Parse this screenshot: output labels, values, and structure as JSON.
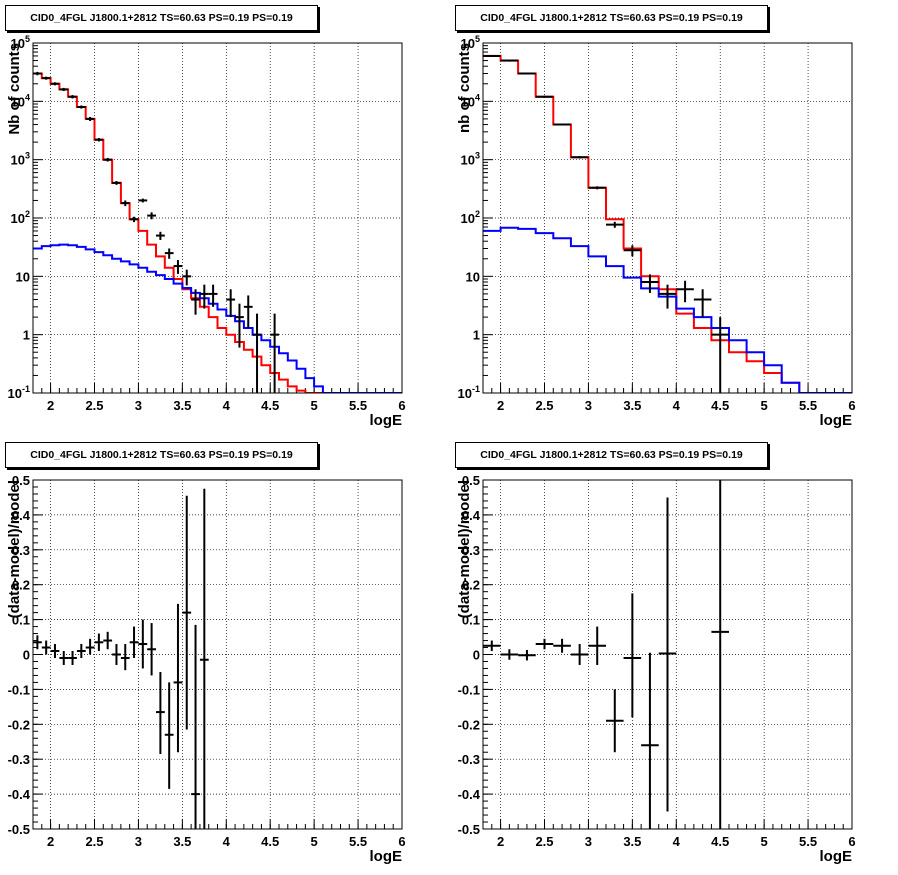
{
  "chart_data": [
    {
      "type": "line",
      "panel": "top-left",
      "title": "CID0_4FGL J1800.1+2812 TS=60.63 PS=0.19 PS=0.19",
      "xlabel": "logE",
      "ylabel": "Nb of counts",
      "xlim": [
        1.8,
        6.0
      ],
      "ylim": [
        0.1,
        100000
      ],
      "yscale": "log",
      "grid": true,
      "x_ticks": [
        "2",
        "2.5",
        "3",
        "3.5",
        "4",
        "4.5",
        "5",
        "5.5",
        "6"
      ],
      "y_ticks": [
        "10⁻¹",
        "1",
        "10",
        "10²",
        "10³",
        "10⁴",
        "10⁵"
      ],
      "bin_edges": [
        1.8,
        1.9,
        2.0,
        2.1,
        2.2,
        2.3,
        2.4,
        2.5,
        2.6,
        2.7,
        2.8,
        2.9,
        3.0,
        3.1,
        3.2,
        3.3,
        3.4,
        3.5,
        3.6,
        3.7,
        3.8,
        3.9,
        4.0,
        4.1,
        4.2,
        4.3,
        4.4,
        4.5,
        4.6,
        4.7,
        4.8,
        4.9,
        5.0,
        5.1,
        5.2,
        5.3,
        5.4,
        5.5,
        5.6,
        5.7,
        5.8,
        5.9,
        6.0
      ],
      "series": [
        {
          "color": "#ff0000",
          "style": "step",
          "values": [
            30000,
            25000,
            20000,
            16000,
            12000,
            8000,
            5000,
            2200,
            1000,
            400,
            180,
            95,
            60,
            35,
            22,
            14,
            9,
            6,
            4.2,
            3.0,
            2.0,
            1.3,
            1.0,
            0.75,
            0.55,
            0.42,
            0.3,
            0.22,
            0.17,
            0.13,
            0.11,
            0.1,
            0.1,
            0.1,
            0.1,
            0.1,
            0.1,
            0.1,
            0.1,
            0.1,
            0.1,
            0.1
          ]
        },
        {
          "color": "#0000ff",
          "style": "step",
          "values": [
            30,
            33,
            34,
            35,
            34,
            32,
            29,
            26,
            23,
            20,
            18,
            16,
            14,
            12,
            10.5,
            9,
            7.5,
            6.3,
            5.2,
            4.2,
            3.4,
            2.7,
            2.1,
            1.7,
            1.3,
            1.0,
            0.8,
            0.62,
            0.48,
            0.36,
            0.26,
            0.18,
            0.13,
            0.1,
            0.1,
            0.1,
            0.1,
            0.1,
            0.1,
            0.1,
            0.1,
            0.1
          ]
        }
      ],
      "points": [
        {
          "x": 1.85,
          "xerr": 0.05,
          "y": 30000,
          "ylo": 28000,
          "yhi": 32000
        },
        {
          "x": 1.95,
          "xerr": 0.05,
          "y": 25000,
          "ylo": 23500,
          "yhi": 26500
        },
        {
          "x": 2.05,
          "xerr": 0.05,
          "y": 20000,
          "ylo": 18800,
          "yhi": 21200
        },
        {
          "x": 2.15,
          "xerr": 0.05,
          "y": 16000,
          "ylo": 15000,
          "yhi": 17000
        },
        {
          "x": 2.25,
          "xerr": 0.05,
          "y": 12000,
          "ylo": 11200,
          "yhi": 12800
        },
        {
          "x": 2.35,
          "xerr": 0.05,
          "y": 8000,
          "ylo": 7500,
          "yhi": 8500
        },
        {
          "x": 2.45,
          "xerr": 0.05,
          "y": 5000,
          "ylo": 4600,
          "yhi": 5400
        },
        {
          "x": 2.55,
          "xerr": 0.05,
          "y": 2200,
          "ylo": 2050,
          "yhi": 2350
        },
        {
          "x": 2.65,
          "xerr": 0.05,
          "y": 1000,
          "ylo": 930,
          "yhi": 1070
        },
        {
          "x": 2.75,
          "xerr": 0.05,
          "y": 400,
          "ylo": 370,
          "yhi": 430
        },
        {
          "x": 2.85,
          "xerr": 0.05,
          "y": 180,
          "ylo": 160,
          "yhi": 200
        },
        {
          "x": 2.95,
          "xerr": 0.05,
          "y": 95,
          "ylo": 85,
          "yhi": 105
        },
        {
          "x": 3.05,
          "xerr": 0.05,
          "y": 200,
          "ylo": 185,
          "yhi": 215
        },
        {
          "x": 3.15,
          "xerr": 0.05,
          "y": 110,
          "ylo": 95,
          "yhi": 125
        },
        {
          "x": 3.25,
          "xerr": 0.05,
          "y": 50,
          "ylo": 42,
          "yhi": 58
        },
        {
          "x": 3.35,
          "xerr": 0.05,
          "y": 25,
          "ylo": 20,
          "yhi": 30
        },
        {
          "x": 3.45,
          "xerr": 0.05,
          "y": 15,
          "ylo": 11,
          "yhi": 19
        },
        {
          "x": 3.55,
          "xerr": 0.05,
          "y": 10,
          "ylo": 7,
          "yhi": 13
        },
        {
          "x": 3.65,
          "xerr": 0.05,
          "y": 4,
          "ylo": 2.2,
          "yhi": 6
        },
        {
          "x": 3.75,
          "xerr": 0.05,
          "y": 5,
          "ylo": 2.8,
          "yhi": 7.2
        },
        {
          "x": 3.85,
          "xerr": 0.05,
          "y": 5,
          "ylo": 3,
          "yhi": 7.2
        },
        {
          "x": 4.05,
          "xerr": 0.05,
          "y": 4,
          "ylo": 2,
          "yhi": 6
        },
        {
          "x": 4.15,
          "xerr": 0.05,
          "y": 2,
          "ylo": 0.6,
          "yhi": 3.4
        },
        {
          "x": 4.25,
          "xerr": 0.05,
          "y": 3,
          "ylo": 1.3,
          "yhi": 4.7
        },
        {
          "x": 4.35,
          "xerr": 0.05,
          "y": 1,
          "ylo": 0.1,
          "yhi": 2.3
        },
        {
          "x": 4.55,
          "xerr": 0.05,
          "y": 1,
          "ylo": 0.1,
          "yhi": 2.3
        }
      ]
    },
    {
      "type": "line",
      "panel": "top-right",
      "title": "CID0_4FGL J1800.1+2812 TS=60.63 PS=0.19 PS=0.19",
      "xlabel": "logE",
      "ylabel": "nb of counts",
      "xlim": [
        1.8,
        6.0
      ],
      "ylim": [
        0.1,
        100000
      ],
      "yscale": "log",
      "grid": true,
      "x_ticks": [
        "2",
        "2.5",
        "3",
        "3.5",
        "4",
        "4.5",
        "5",
        "5.5",
        "6"
      ],
      "y_ticks": [
        "10⁻¹",
        "1",
        "10",
        "10²",
        "10³",
        "10⁴",
        "10⁵"
      ],
      "bin_edges": [
        1.8,
        2.0,
        2.2,
        2.4,
        2.6,
        2.8,
        3.0,
        3.2,
        3.4,
        3.6,
        3.8,
        4.0,
        4.2,
        4.4,
        4.6,
        4.8,
        5.0,
        5.2,
        5.4,
        5.6,
        5.8,
        6.0
      ],
      "series": [
        {
          "color": "#ff0000",
          "style": "step",
          "values": [
            60000,
            50000,
            30000,
            12000,
            4000,
            1100,
            330,
            95,
            30,
            10,
            6,
            2.3,
            1.3,
            0.8,
            0.5,
            0.35,
            0.22,
            0.15,
            0.1,
            0.1,
            0.1
          ]
        },
        {
          "color": "#0000ff",
          "style": "step",
          "values": [
            60,
            68,
            65,
            55,
            45,
            33,
            22,
            15,
            9.5,
            6.2,
            4.5,
            2.8,
            2.0,
            1.3,
            0.8,
            0.5,
            0.3,
            0.15,
            0.1,
            0.1,
            0.1
          ]
        }
      ],
      "points": [
        {
          "x": 1.9,
          "xerr": 0.1,
          "y": 60000,
          "ylo": 58000,
          "yhi": 62000
        },
        {
          "x": 2.1,
          "xerr": 0.1,
          "y": 50000,
          "ylo": 48000,
          "yhi": 52000
        },
        {
          "x": 2.3,
          "xerr": 0.1,
          "y": 30000,
          "ylo": 29000,
          "yhi": 31000
        },
        {
          "x": 2.5,
          "xerr": 0.1,
          "y": 12000,
          "ylo": 11500,
          "yhi": 12500
        },
        {
          "x": 2.7,
          "xerr": 0.1,
          "y": 4000,
          "ylo": 3850,
          "yhi": 4150
        },
        {
          "x": 2.9,
          "xerr": 0.1,
          "y": 1100,
          "ylo": 1050,
          "yhi": 1150
        },
        {
          "x": 3.1,
          "xerr": 0.1,
          "y": 330,
          "ylo": 310,
          "yhi": 350
        },
        {
          "x": 3.3,
          "xerr": 0.1,
          "y": 77,
          "ylo": 68,
          "yhi": 86
        },
        {
          "x": 3.5,
          "xerr": 0.1,
          "y": 28,
          "ylo": 22,
          "yhi": 34
        },
        {
          "x": 3.7,
          "xerr": 0.1,
          "y": 8,
          "ylo": 5.2,
          "yhi": 10.8
        },
        {
          "x": 3.9,
          "xerr": 0.1,
          "y": 5,
          "ylo": 2.8,
          "yhi": 7.2
        },
        {
          "x": 4.1,
          "xerr": 0.1,
          "y": 6,
          "ylo": 3.6,
          "yhi": 8.4
        },
        {
          "x": 4.3,
          "xerr": 0.1,
          "y": 4,
          "ylo": 2,
          "yhi": 6
        },
        {
          "x": 4.5,
          "xerr": 0.1,
          "y": 1,
          "ylo": 0.1,
          "yhi": 2
        }
      ]
    },
    {
      "type": "scatter",
      "panel": "bottom-left",
      "title": "CID0_4FGL J1800.1+2812 TS=60.63 PS=0.19 PS=0.19",
      "xlabel": "logE",
      "ylabel": "(data-model)/model",
      "xlim": [
        1.8,
        6.0
      ],
      "ylim": [
        -0.5,
        0.5
      ],
      "grid": true,
      "x_ticks": [
        "2",
        "2.5",
        "3",
        "3.5",
        "4",
        "4.5",
        "5",
        "5.5",
        "6"
      ],
      "y_ticks": [
        "-0.5",
        "-0.4",
        "-0.3",
        "-0.2",
        "-0.1",
        "0",
        "0.1",
        "0.2",
        "0.3",
        "0.4",
        "0.5"
      ],
      "points": [
        {
          "x": 1.85,
          "xerr": 0.05,
          "y": 0.035,
          "ylo": 0.015,
          "yhi": 0.055
        },
        {
          "x": 1.95,
          "xerr": 0.05,
          "y": 0.02,
          "ylo": 0.0,
          "yhi": 0.04
        },
        {
          "x": 2.05,
          "xerr": 0.05,
          "y": 0.01,
          "ylo": -0.01,
          "yhi": 0.03
        },
        {
          "x": 2.15,
          "xerr": 0.05,
          "y": -0.01,
          "ylo": -0.03,
          "yhi": 0.01
        },
        {
          "x": 2.25,
          "xerr": 0.05,
          "y": -0.01,
          "ylo": -0.03,
          "yhi": 0.01
        },
        {
          "x": 2.35,
          "xerr": 0.05,
          "y": 0.01,
          "ylo": -0.01,
          "yhi": 0.03
        },
        {
          "x": 2.45,
          "xerr": 0.05,
          "y": 0.02,
          "ylo": 0.0,
          "yhi": 0.045
        },
        {
          "x": 2.55,
          "xerr": 0.05,
          "y": 0.035,
          "ylo": 0.01,
          "yhi": 0.06
        },
        {
          "x": 2.65,
          "xerr": 0.05,
          "y": 0.04,
          "ylo": 0.015,
          "yhi": 0.065
        },
        {
          "x": 2.75,
          "xerr": 0.05,
          "y": 0.0,
          "ylo": -0.03,
          "yhi": 0.03
        },
        {
          "x": 2.85,
          "xerr": 0.05,
          "y": -0.01,
          "ylo": -0.045,
          "yhi": 0.03
        },
        {
          "x": 2.95,
          "xerr": 0.05,
          "y": 0.035,
          "ylo": -0.01,
          "yhi": 0.08
        },
        {
          "x": 3.05,
          "xerr": 0.05,
          "y": 0.03,
          "ylo": -0.04,
          "yhi": 0.1
        },
        {
          "x": 3.15,
          "xerr": 0.05,
          "y": 0.015,
          "ylo": -0.06,
          "yhi": 0.09
        },
        {
          "x": 3.25,
          "xerr": 0.05,
          "y": -0.165,
          "ylo": -0.285,
          "yhi": -0.05
        },
        {
          "x": 3.35,
          "xerr": 0.05,
          "y": -0.23,
          "ylo": -0.385,
          "yhi": -0.08
        },
        {
          "x": 3.45,
          "xerr": 0.05,
          "y": -0.08,
          "ylo": -0.28,
          "yhi": 0.145
        },
        {
          "x": 3.55,
          "xerr": 0.05,
          "y": 0.12,
          "ylo": -0.215,
          "yhi": 0.455
        },
        {
          "x": 3.65,
          "xerr": 0.05,
          "y": -0.4,
          "ylo": -0.5,
          "yhi": 0.085
        },
        {
          "x": 3.75,
          "xerr": 0.05,
          "y": -0.015,
          "ylo": -0.5,
          "yhi": 0.475
        }
      ]
    },
    {
      "type": "scatter",
      "panel": "bottom-right",
      "title": "CID0_4FGL J1800.1+2812 TS=60.63 PS=0.19 PS=0.19",
      "xlabel": "logE",
      "ylabel": "(data-model)/model",
      "xlim": [
        1.8,
        6.0
      ],
      "ylim": [
        -0.5,
        0.5
      ],
      "grid": true,
      "x_ticks": [
        "2",
        "2.5",
        "3",
        "3.5",
        "4",
        "4.5",
        "5",
        "5.5",
        "6"
      ],
      "y_ticks": [
        "-0.5",
        "-0.4",
        "-0.3",
        "-0.2",
        "-0.1",
        "0",
        "0.1",
        "0.2",
        "0.3",
        "0.4",
        "0.5"
      ],
      "points": [
        {
          "x": 1.9,
          "xerr": 0.1,
          "y": 0.025,
          "ylo": 0.01,
          "yhi": 0.04
        },
        {
          "x": 2.1,
          "xerr": 0.1,
          "y": 0.0,
          "ylo": -0.015,
          "yhi": 0.015
        },
        {
          "x": 2.3,
          "xerr": 0.1,
          "y": -0.002,
          "ylo": -0.017,
          "yhi": 0.013
        },
        {
          "x": 2.5,
          "xerr": 0.1,
          "y": 0.03,
          "ylo": 0.015,
          "yhi": 0.045
        },
        {
          "x": 2.7,
          "xerr": 0.1,
          "y": 0.025,
          "ylo": 0.005,
          "yhi": 0.045
        },
        {
          "x": 2.9,
          "xerr": 0.1,
          "y": 0.0,
          "ylo": -0.03,
          "yhi": 0.03
        },
        {
          "x": 3.1,
          "xerr": 0.1,
          "y": 0.025,
          "ylo": -0.03,
          "yhi": 0.08
        },
        {
          "x": 3.3,
          "xerr": 0.1,
          "y": -0.19,
          "ylo": -0.28,
          "yhi": -0.1
        },
        {
          "x": 3.5,
          "xerr": 0.1,
          "y": -0.01,
          "ylo": -0.18,
          "yhi": 0.175
        },
        {
          "x": 3.7,
          "xerr": 0.1,
          "y": -0.26,
          "ylo": -0.5,
          "yhi": 0.005
        },
        {
          "x": 3.9,
          "xerr": 0.1,
          "y": 0.003,
          "ylo": -0.45,
          "yhi": 0.45
        },
        {
          "x": 4.5,
          "xerr": 0.1,
          "y": 0.065,
          "ylo": -0.5,
          "yhi": 0.5
        }
      ]
    }
  ]
}
